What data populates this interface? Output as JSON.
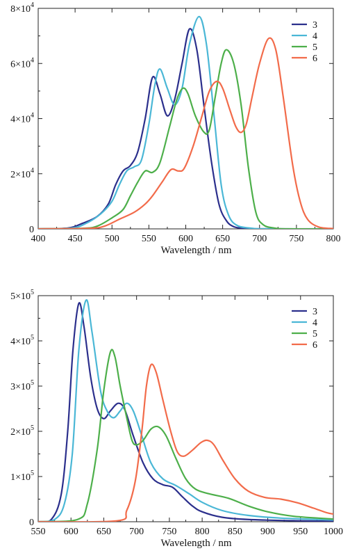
{
  "chart_data": [
    {
      "type": "line",
      "xlabel": "Wavelength / nm",
      "ylabel": "",
      "xlim": [
        400,
        800
      ],
      "ylim": [
        0,
        80000
      ],
      "x_ticks": [
        400,
        450,
        500,
        550,
        600,
        650,
        700,
        750,
        800
      ],
      "x_tick_labels": [
        "400",
        "450",
        "500",
        "550",
        "600",
        "650",
        "700",
        "750",
        "800"
      ],
      "y_ticks": [
        0,
        20000,
        40000,
        60000,
        80000
      ],
      "y_tick_labels": [
        {
          "mant": "0",
          "exp": ""
        },
        {
          "mant": "2×10",
          "exp": "4"
        },
        {
          "mant": "4×10",
          "exp": "4"
        },
        {
          "mant": "6×10",
          "exp": "4"
        },
        {
          "mant": "8×10",
          "exp": "4"
        }
      ],
      "grid": false,
      "legend": "top-right",
      "series": [
        {
          "name": "3",
          "color": "#2b2f8c",
          "points": [
            [
              400,
              0
            ],
            [
              440,
              300
            ],
            [
              460,
              2000
            ],
            [
              480,
              4500
            ],
            [
              495,
              9000
            ],
            [
              505,
              16000
            ],
            [
              515,
              21000
            ],
            [
              525,
              23000
            ],
            [
              535,
              28000
            ],
            [
              545,
              40000
            ],
            [
              555,
              55000
            ],
            [
              565,
              49000
            ],
            [
              575,
              41000
            ],
            [
              585,
              47000
            ],
            [
              595,
              60000
            ],
            [
              605,
              72500
            ],
            [
              615,
              65000
            ],
            [
              625,
              44000
            ],
            [
              635,
              24000
            ],
            [
              645,
              9000
            ],
            [
              655,
              3000
            ],
            [
              665,
              800
            ],
            [
              680,
              150
            ],
            [
              700,
              0
            ],
            [
              800,
              0
            ]
          ]
        },
        {
          "name": "4",
          "color": "#4ab7d6",
          "points": [
            [
              400,
              0
            ],
            [
              445,
              300
            ],
            [
              465,
              2000
            ],
            [
              485,
              5500
            ],
            [
              500,
              10000
            ],
            [
              510,
              16000
            ],
            [
              520,
              21000
            ],
            [
              530,
              22500
            ],
            [
              540,
              25000
            ],
            [
              550,
              38000
            ],
            [
              558,
              52000
            ],
            [
              565,
              58000
            ],
            [
              575,
              51000
            ],
            [
              585,
              45000
            ],
            [
              595,
              51000
            ],
            [
              605,
              67000
            ],
            [
              618,
              77000
            ],
            [
              628,
              67000
            ],
            [
              638,
              42000
            ],
            [
              648,
              16000
            ],
            [
              658,
              5000
            ],
            [
              670,
              1200
            ],
            [
              690,
              200
            ],
            [
              710,
              0
            ],
            [
              800,
              0
            ]
          ]
        },
        {
          "name": "5",
          "color": "#4daf4a",
          "points": [
            [
              400,
              0
            ],
            [
              460,
              200
            ],
            [
              480,
              1000
            ],
            [
              500,
              4000
            ],
            [
              515,
              7000
            ],
            [
              525,
              12000
            ],
            [
              535,
              17000
            ],
            [
              545,
              21000
            ],
            [
              555,
              20500
            ],
            [
              565,
              24000
            ],
            [
              578,
              37000
            ],
            [
              588,
              47000
            ],
            [
              596,
              51000
            ],
            [
              603,
              49000
            ],
            [
              613,
              41000
            ],
            [
              625,
              35000
            ],
            [
              632,
              36000
            ],
            [
              640,
              48000
            ],
            [
              648,
              60000
            ],
            [
              655,
              65000
            ],
            [
              665,
              60000
            ],
            [
              675,
              45000
            ],
            [
              685,
              22000
            ],
            [
              695,
              6000
            ],
            [
              705,
              1500
            ],
            [
              720,
              300
            ],
            [
              740,
              0
            ],
            [
              800,
              0
            ]
          ]
        },
        {
          "name": "6",
          "color": "#f26b4a",
          "points": [
            [
              400,
              0
            ],
            [
              470,
              200
            ],
            [
              490,
              1000
            ],
            [
              510,
              3500
            ],
            [
              530,
              6000
            ],
            [
              545,
              9000
            ],
            [
              555,
              12000
            ],
            [
              568,
              17000
            ],
            [
              580,
              21500
            ],
            [
              590,
              21000
            ],
            [
              598,
              22000
            ],
            [
              610,
              30000
            ],
            [
              622,
              41000
            ],
            [
              632,
              50000
            ],
            [
              642,
              53500
            ],
            [
              650,
              51000
            ],
            [
              660,
              43000
            ],
            [
              668,
              37000
            ],
            [
              675,
              35000
            ],
            [
              682,
              38000
            ],
            [
              690,
              48000
            ],
            [
              700,
              60000
            ],
            [
              712,
              69000
            ],
            [
              722,
              65000
            ],
            [
              732,
              48000
            ],
            [
              745,
              23000
            ],
            [
              755,
              10000
            ],
            [
              765,
              3500
            ],
            [
              780,
              700
            ],
            [
              800,
              100
            ]
          ]
        }
      ]
    },
    {
      "type": "line",
      "xlabel": "Wavelength / nm",
      "ylabel": "",
      "xlim": [
        550,
        1000
      ],
      "ylim": [
        0,
        500000
      ],
      "x_ticks": [
        550,
        600,
        650,
        700,
        750,
        800,
        850,
        900,
        950,
        1000
      ],
      "x_tick_labels": [
        "550",
        "600",
        "650",
        "700",
        "750",
        "800",
        "850",
        "900",
        "950",
        "1000"
      ],
      "y_ticks": [
        0,
        100000,
        200000,
        300000,
        400000,
        500000
      ],
      "y_tick_labels": [
        {
          "mant": "0",
          "exp": ""
        },
        {
          "mant": "1×10",
          "exp": "5"
        },
        {
          "mant": "2×10",
          "exp": "5"
        },
        {
          "mant": "3×10",
          "exp": "5"
        },
        {
          "mant": "4×10",
          "exp": "5"
        },
        {
          "mant": "5×10",
          "exp": "5"
        }
      ],
      "grid": false,
      "legend": "top-right",
      "series": [
        {
          "name": "3",
          "color": "#2b2f8c",
          "points": [
            [
              550,
              0
            ],
            [
              570,
              5000
            ],
            [
              585,
              60000
            ],
            [
              595,
              200000
            ],
            [
              603,
              380000
            ],
            [
              612,
              483000
            ],
            [
              620,
              430000
            ],
            [
              630,
              320000
            ],
            [
              640,
              250000
            ],
            [
              650,
              228000
            ],
            [
              660,
              245000
            ],
            [
              672,
              262000
            ],
            [
              682,
              248000
            ],
            [
              695,
              190000
            ],
            [
              710,
              130000
            ],
            [
              725,
              95000
            ],
            [
              740,
              82000
            ],
            [
              755,
              76000
            ],
            [
              770,
              55000
            ],
            [
              785,
              35000
            ],
            [
              800,
              22000
            ],
            [
              830,
              10000
            ],
            [
              870,
              5000
            ],
            [
              950,
              2000
            ],
            [
              1000,
              1000
            ]
          ]
        },
        {
          "name": "4",
          "color": "#4ab7d6",
          "points": [
            [
              550,
              0
            ],
            [
              575,
              5000
            ],
            [
              590,
              40000
            ],
            [
              602,
              150000
            ],
            [
              612,
              380000
            ],
            [
              623,
              490000
            ],
            [
              632,
              420000
            ],
            [
              645,
              290000
            ],
            [
              655,
              245000
            ],
            [
              665,
              230000
            ],
            [
              675,
              245000
            ],
            [
              685,
              262000
            ],
            [
              695,
              245000
            ],
            [
              708,
              190000
            ],
            [
              722,
              130000
            ],
            [
              740,
              95000
            ],
            [
              760,
              80000
            ],
            [
              780,
              62000
            ],
            [
              800,
              43000
            ],
            [
              830,
              25000
            ],
            [
              870,
              14000
            ],
            [
              920,
              8000
            ],
            [
              1000,
              4000
            ]
          ]
        },
        {
          "name": "5",
          "color": "#4daf4a",
          "points": [
            [
              550,
              0
            ],
            [
              610,
              5000
            ],
            [
              625,
              40000
            ],
            [
              640,
              160000
            ],
            [
              650,
              290000
            ],
            [
              660,
              375000
            ],
            [
              667,
              365000
            ],
            [
              675,
              300000
            ],
            [
              685,
              230000
            ],
            [
              693,
              180000
            ],
            [
              700,
              170000
            ],
            [
              710,
              180000
            ],
            [
              722,
              205000
            ],
            [
              733,
              210000
            ],
            [
              745,
              190000
            ],
            [
              760,
              140000
            ],
            [
              775,
              95000
            ],
            [
              790,
              72000
            ],
            [
              810,
              62000
            ],
            [
              840,
              52000
            ],
            [
              870,
              35000
            ],
            [
              900,
              22000
            ],
            [
              940,
              12000
            ],
            [
              1000,
              6000
            ]
          ]
        },
        {
          "name": "6",
          "color": "#f26b4a",
          "points": [
            [
              550,
              0
            ],
            [
              670,
              2000
            ],
            [
              685,
              25000
            ],
            [
              698,
              90000
            ],
            [
              708,
              200000
            ],
            [
              715,
              300000
            ],
            [
              722,
              347000
            ],
            [
              730,
              330000
            ],
            [
              740,
              270000
            ],
            [
              752,
              200000
            ],
            [
              762,
              155000
            ],
            [
              772,
              145000
            ],
            [
              785,
              158000
            ],
            [
              798,
              175000
            ],
            [
              808,
              180000
            ],
            [
              818,
              170000
            ],
            [
              832,
              135000
            ],
            [
              850,
              95000
            ],
            [
              870,
              68000
            ],
            [
              895,
              54000
            ],
            [
              920,
              50000
            ],
            [
              945,
              42000
            ],
            [
              970,
              30000
            ],
            [
              990,
              20000
            ],
            [
              1000,
              17000
            ]
          ]
        }
      ]
    }
  ]
}
